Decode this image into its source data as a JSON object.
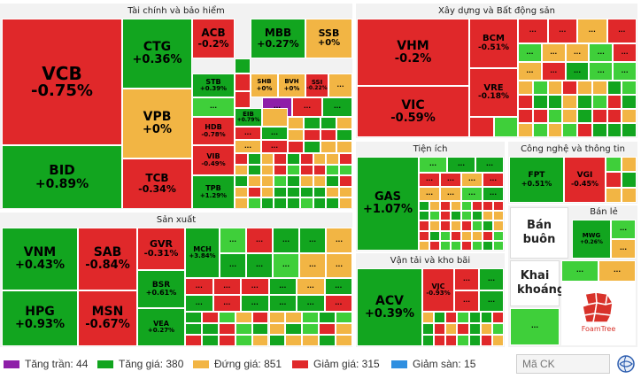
{
  "sectors": [
    {
      "id": "taichinh",
      "title": "Tài chính và bảo hiểm",
      "stocks": [
        {
          "t": "VCB",
          "c": "-0.75%",
          "k": "down"
        },
        {
          "t": "BID",
          "c": "+0.89%",
          "k": "up"
        },
        {
          "t": "CTG",
          "c": "+0.36%",
          "k": "up"
        },
        {
          "t": "VPB",
          "c": "+0%",
          "k": "flat"
        },
        {
          "t": "TCB",
          "c": "-0.34%",
          "k": "down"
        },
        {
          "t": "ACB",
          "c": "-0.2%",
          "k": "down"
        },
        {
          "t": "MBB",
          "c": "+0.27%",
          "k": "up"
        },
        {
          "t": "SSB",
          "c": "+0%",
          "k": "flat"
        },
        {
          "t": "STB",
          "c": "+0.39%",
          "k": "up"
        },
        {
          "t": "SHB",
          "c": "+0%",
          "k": "flat"
        },
        {
          "t": "BVH",
          "c": "+0%",
          "k": "flat"
        },
        {
          "t": "SSI",
          "c": "-0.22%",
          "k": "down"
        },
        {
          "t": "HDB",
          "c": "-0.78%",
          "k": "down"
        },
        {
          "t": "EIB",
          "c": "+0.79%",
          "k": "up"
        },
        {
          "t": "VIB",
          "c": "-0.49%",
          "k": "down"
        },
        {
          "t": "TPB",
          "c": "+1.29%",
          "k": "up"
        }
      ]
    },
    {
      "id": "xaydung",
      "title": "Xây dựng và Bất động sản",
      "stocks": [
        {
          "t": "VHM",
          "c": "-0.2%",
          "k": "down"
        },
        {
          "t": "VIC",
          "c": "-0.59%",
          "k": "down"
        },
        {
          "t": "BCM",
          "c": "-0.51%",
          "k": "down"
        },
        {
          "t": "VRE",
          "c": "-0.18%",
          "k": "down"
        }
      ]
    },
    {
      "id": "sanxuat",
      "title": "Sản xuất",
      "stocks": [
        {
          "t": "VNM",
          "c": "+0.43%",
          "k": "up"
        },
        {
          "t": "HPG",
          "c": "+0.93%",
          "k": "up"
        },
        {
          "t": "SAB",
          "c": "-0.84%",
          "k": "down"
        },
        {
          "t": "MSN",
          "c": "-0.67%",
          "k": "down"
        },
        {
          "t": "GVR",
          "c": "-0.31%",
          "k": "down"
        },
        {
          "t": "BSR",
          "c": "+0.61%",
          "k": "up"
        },
        {
          "t": "VEA",
          "c": "+0.27%",
          "k": "up"
        },
        {
          "t": "MCH",
          "c": "+3.84%",
          "k": "up"
        }
      ]
    },
    {
      "id": "tienich",
      "title": "Tiện ích",
      "stocks": [
        {
          "t": "GAS",
          "c": "+1.07%",
          "k": "up"
        }
      ]
    },
    {
      "id": "vantai",
      "title": "Vận tải và kho bãi",
      "stocks": [
        {
          "t": "ACV",
          "c": "+0.39%",
          "k": "up"
        },
        {
          "t": "VJC",
          "c": "-0.93%",
          "k": "down"
        }
      ]
    },
    {
      "id": "congnghe",
      "title": "Công nghệ và thông tin",
      "stocks": [
        {
          "t": "FPT",
          "c": "+0.51%",
          "k": "up"
        },
        {
          "t": "VGI",
          "c": "-0.45%",
          "k": "down"
        }
      ]
    },
    {
      "id": "banle",
      "title": "Bán lẻ",
      "stocks": [
        {
          "t": "MWG",
          "c": "+0.26%",
          "k": "up"
        }
      ]
    }
  ],
  "groups": {
    "ban_buon": "Bán buôn",
    "khai_khoang": "Khai khoáng"
  },
  "placeholder_label": "...",
  "legend": [
    {
      "label": "Tăng trần: 44",
      "color": "#8e1fa8"
    },
    {
      "label": "Tăng giá: 380",
      "color": "#12a51f"
    },
    {
      "label": "Đứng giá: 851",
      "color": "#f2b544"
    },
    {
      "label": "Giảm giá: 315",
      "color": "#e0282a"
    },
    {
      "label": "Giảm sàn: 15",
      "color": "#2f8fe0"
    }
  ],
  "colors": {
    "up": "#12a51f",
    "up_light": "#3fcf3a",
    "down": "#e0282a",
    "flat": "#f2b544",
    "ceiling": "#8e1fa8",
    "floor": "#2f8fe0",
    "panel": "#f2f2f2"
  },
  "search": {
    "placeholder": "Mã CK"
  },
  "brand": "FoamTree"
}
